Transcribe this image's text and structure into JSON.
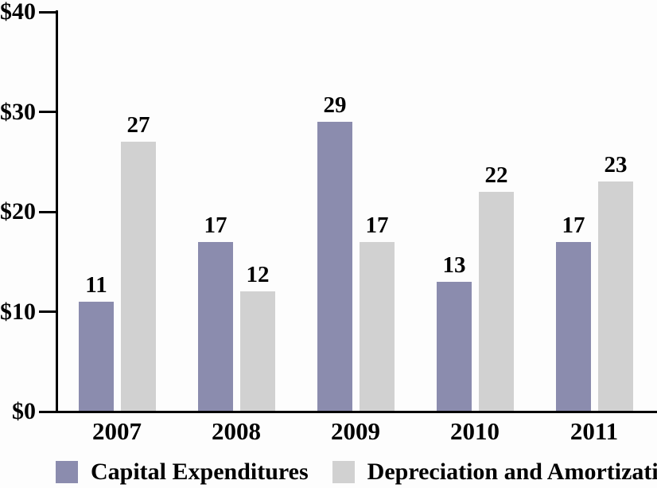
{
  "chart_data": {
    "type": "bar",
    "title": "",
    "xlabel": "",
    "ylabel": "",
    "categories": [
      "2007",
      "2008",
      "2009",
      "2010",
      "2011"
    ],
    "series": [
      {
        "name": "Capital Expenditures",
        "color": "#8b8cae",
        "values": [
          11,
          17,
          29,
          13,
          17
        ]
      },
      {
        "name": "Depreciation and Amortization",
        "color": "#d1d1d1",
        "values": [
          27,
          12,
          17,
          22,
          23
        ]
      }
    ],
    "ylim": [
      0,
      40
    ],
    "y_ticks": [
      {
        "value": 0,
        "label": "$0"
      },
      {
        "value": 10,
        "label": "$10"
      },
      {
        "value": 20,
        "label": "$20"
      },
      {
        "value": 30,
        "label": "$30"
      },
      {
        "value": 40,
        "label": "$40"
      }
    ],
    "value_labels_shown": true,
    "grid": false,
    "legend_position": "bottom",
    "colors": {
      "axis": "#000000",
      "background": "#fdfdfd",
      "text": "#000000"
    }
  }
}
